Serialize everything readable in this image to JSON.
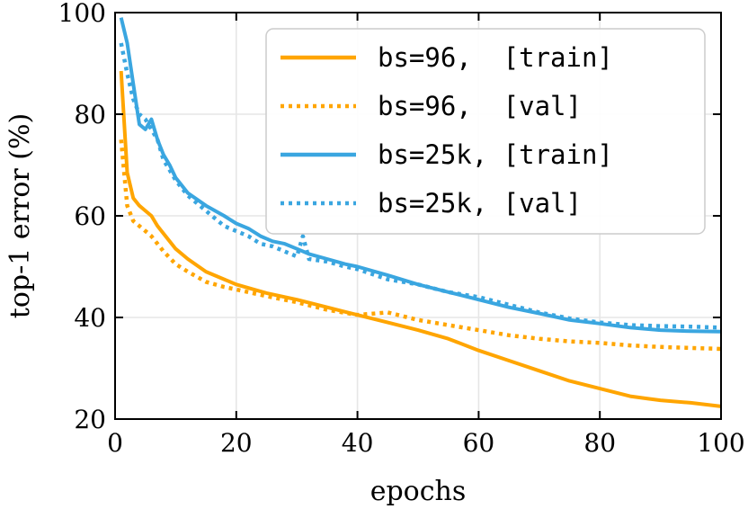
{
  "chart_data": {
    "type": "line",
    "title": "",
    "xlabel": "epochs",
    "ylabel": "top-1 error (%)",
    "xlim": [
      0,
      100
    ],
    "ylim": [
      20,
      100
    ],
    "xticks": [
      0,
      20,
      40,
      60,
      80,
      100
    ],
    "yticks": [
      20,
      40,
      60,
      80,
      100
    ],
    "grid": true,
    "legend_position": "top-right",
    "series": [
      {
        "name": "bs=96,  [train]",
        "color": "#ffa500",
        "style": "solid",
        "x": [
          1,
          2,
          3,
          4,
          5,
          6,
          7,
          8,
          10,
          12,
          15,
          18,
          20,
          25,
          30,
          35,
          40,
          45,
          50,
          55,
          60,
          65,
          70,
          75,
          80,
          85,
          88,
          90,
          95,
          100
        ],
        "y": [
          88.5,
          68.5,
          63.5,
          62,
          61,
          60,
          58,
          56.5,
          53.5,
          51.5,
          49,
          47.5,
          46.5,
          44.8,
          43.5,
          42,
          40.5,
          39,
          37.5,
          35.8,
          33.5,
          31.5,
          29.5,
          27.5,
          26,
          24.5,
          24,
          23.7,
          23.2,
          22.5
        ]
      },
      {
        "name": "bs=96,  [val]",
        "color": "#ffa500",
        "style": "dotted",
        "x": [
          1,
          2,
          3,
          4,
          5,
          6,
          7,
          8,
          10,
          12,
          15,
          18,
          20,
          25,
          30,
          35,
          40,
          45,
          50,
          55,
          60,
          65,
          70,
          75,
          80,
          85,
          90,
          95,
          100
        ],
        "y": [
          75,
          62,
          59,
          58,
          57,
          56,
          54.5,
          53,
          50.5,
          49,
          47,
          46,
          45.5,
          44.2,
          43,
          41.5,
          40.5,
          41,
          39.5,
          38.5,
          37.5,
          36.5,
          35.8,
          35.3,
          35,
          34.5,
          34.2,
          34,
          33.8
        ]
      },
      {
        "name": "bs=25k, [train]",
        "color": "#3aa6e0",
        "style": "solid",
        "x": [
          1,
          2,
          3,
          4,
          5,
          6,
          7,
          8,
          9,
          10,
          12,
          15,
          18,
          20,
          22,
          24,
          26,
          28,
          30,
          32,
          35,
          38,
          40,
          45,
          50,
          55,
          60,
          65,
          70,
          75,
          80,
          85,
          90,
          95,
          100
        ],
        "y": [
          99,
          94,
          86,
          78,
          77,
          79,
          75,
          72,
          70,
          67.5,
          64.5,
          62,
          60,
          58.5,
          57.5,
          56,
          55,
          54.5,
          53.5,
          52.5,
          51.5,
          50.5,
          50,
          48.3,
          46.5,
          45,
          43.5,
          42,
          40.8,
          39.5,
          38.8,
          38,
          37.5,
          37.3,
          37.2
        ]
      },
      {
        "name": "bs=25k, [val]",
        "color": "#3aa6e0",
        "style": "dotted",
        "x": [
          1,
          2,
          3,
          4,
          5,
          6,
          7,
          8,
          9,
          10,
          12,
          15,
          18,
          20,
          22,
          24,
          26,
          28,
          30,
          31,
          32,
          35,
          38,
          40,
          45,
          50,
          55,
          60,
          65,
          70,
          75,
          80,
          85,
          90,
          95,
          100
        ],
        "y": [
          94,
          88,
          83,
          80,
          79,
          77,
          75,
          71,
          69,
          67,
          64,
          61,
          58,
          57,
          56,
          54.5,
          54,
          53,
          52,
          56,
          51.5,
          51,
          50,
          49.5,
          47.5,
          46.5,
          45,
          44,
          42.5,
          41,
          39.8,
          39,
          38.5,
          38.3,
          38.2,
          38
        ]
      }
    ]
  }
}
